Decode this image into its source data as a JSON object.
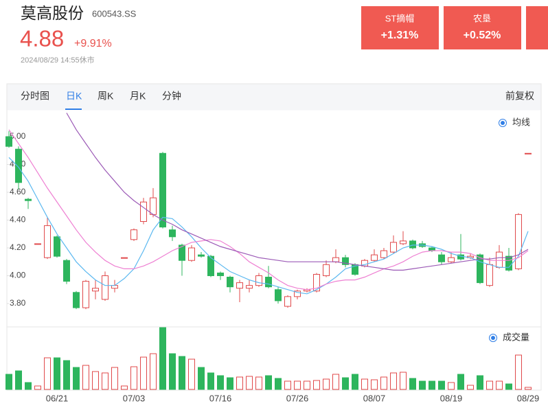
{
  "header": {
    "name": "莫高股份",
    "code": "600543.SS",
    "price": "4.88",
    "change": "+9.91%",
    "time": "2024/08/29 14:55休市"
  },
  "sectors": [
    {
      "name": "ST摘帽",
      "change": "+1.31%"
    },
    {
      "name": "农垦",
      "change": "+0.52%"
    }
  ],
  "tabs": [
    "分时图",
    "日K",
    "周K",
    "月K",
    "分钟"
  ],
  "active_tab": 1,
  "adjust": "前复权",
  "chart_data": [
    {
      "type": "candlestick",
      "legend": "均线",
      "up_color": "#e0484a",
      "down_color": "#2db55d",
      "ylim": [
        3.64,
        5.18
      ],
      "yticks": [
        {
          "value": 3.8,
          "label": "3.80"
        },
        {
          "value": 4.0,
          "label": "4.00"
        },
        {
          "value": 4.2,
          "label": "4.20"
        },
        {
          "value": 4.4,
          "label": "4.40"
        },
        {
          "value": 4.6,
          "label": "4.60"
        },
        {
          "value": 4.8,
          "label": "4.80"
        },
        {
          "value": 5.0,
          "label": "5.00"
        }
      ],
      "open": [
        5.0,
        4.91,
        4.55,
        4.23,
        4.13,
        4.28,
        4.11,
        3.88,
        3.77,
        3.89,
        3.83,
        3.91,
        4.13,
        4.26,
        4.39,
        4.44,
        4.88,
        4.33,
        4.22,
        4.11,
        4.15,
        4.14,
        4.02,
        3.99,
        3.91,
        3.91,
        3.93,
        3.99,
        3.9,
        3.78,
        3.85,
        3.89,
        3.89,
        4.0,
        4.1,
        4.13,
        4.08,
        4.07,
        4.11,
        4.13,
        4.17,
        4.23,
        4.25,
        4.23,
        4.2,
        4.15,
        4.1,
        4.15,
        4.13,
        4.15,
        3.93,
        4.06,
        4.14,
        4.05,
        4.88
      ],
      "high": [
        5.04,
        4.93,
        4.56,
        4.23,
        4.42,
        4.29,
        4.12,
        3.89,
        3.97,
        3.97,
        4.03,
        3.97,
        4.13,
        4.34,
        4.56,
        4.63,
        4.89,
        4.36,
        4.23,
        4.22,
        4.17,
        4.15,
        4.03,
        4.0,
        3.97,
        3.97,
        4.02,
        4.07,
        3.92,
        3.86,
        3.9,
        3.91,
        4.02,
        4.11,
        4.19,
        4.15,
        4.09,
        4.12,
        4.19,
        4.2,
        4.29,
        4.32,
        4.26,
        4.25,
        4.21,
        4.17,
        4.17,
        4.3,
        4.16,
        4.16,
        4.13,
        4.22,
        4.2,
        4.45,
        4.88
      ],
      "low": [
        4.92,
        4.62,
        4.48,
        4.23,
        4.12,
        4.13,
        3.94,
        3.76,
        3.76,
        3.83,
        3.82,
        3.88,
        4.13,
        4.25,
        4.37,
        4.42,
        4.34,
        4.25,
        4.0,
        4.1,
        4.13,
        3.99,
        3.97,
        3.88,
        3.81,
        3.88,
        3.92,
        3.91,
        3.8,
        3.77,
        3.83,
        3.88,
        3.88,
        3.99,
        4.09,
        4.06,
        4.0,
        4.06,
        4.1,
        4.12,
        4.16,
        4.22,
        4.19,
        4.2,
        4.17,
        4.08,
        4.09,
        4.11,
        4.12,
        3.94,
        3.92,
        4.05,
        4.03,
        4.04,
        4.88
      ],
      "close": [
        4.93,
        4.67,
        4.54,
        4.23,
        4.36,
        4.14,
        3.96,
        3.77,
        3.96,
        3.91,
        4.0,
        3.93,
        4.13,
        4.33,
        4.53,
        4.56,
        4.35,
        4.28,
        4.11,
        4.2,
        4.14,
        4.0,
        4.0,
        3.92,
        3.95,
        3.93,
        4.0,
        3.92,
        3.82,
        3.85,
        3.89,
        3.9,
        4.01,
        4.08,
        4.13,
        4.08,
        4.01,
        4.11,
        4.15,
        4.18,
        4.24,
        4.25,
        4.2,
        4.21,
        4.18,
        4.1,
        4.13,
        4.12,
        4.14,
        3.95,
        4.08,
        4.17,
        4.04,
        4.44,
        4.88
      ],
      "ma": [
        {
          "color": "#5bb8f0",
          "values": [
            4.85,
            4.78,
            4.68,
            4.55,
            4.42,
            4.3,
            4.2,
            4.1,
            4.03,
            3.97,
            3.93,
            3.93,
            3.98,
            4.05,
            4.18,
            4.33,
            4.42,
            4.41,
            4.35,
            4.28,
            4.2,
            4.13,
            4.08,
            4.03,
            4.0,
            3.97,
            3.95,
            3.94,
            3.92,
            3.9,
            3.88,
            3.87,
            3.9,
            3.94,
            3.99,
            4.05,
            4.07,
            4.08,
            4.1,
            4.12,
            4.16,
            4.2,
            4.22,
            4.22,
            4.21,
            4.19,
            4.16,
            4.14,
            4.13,
            4.1,
            4.08,
            4.06,
            4.06,
            4.14,
            4.32
          ]
        },
        {
          "color": "#ee7fd2",
          "values": [
            5.05,
            4.95,
            4.85,
            4.74,
            4.63,
            4.53,
            4.43,
            4.33,
            4.24,
            4.17,
            4.11,
            4.07,
            4.05,
            4.05,
            4.07,
            4.1,
            4.14,
            4.18,
            4.21,
            4.24,
            4.25,
            4.26,
            4.25,
            4.21,
            4.16,
            4.1,
            4.06,
            4.02,
            3.97,
            3.93,
            3.91,
            3.9,
            3.91,
            3.94,
            3.96,
            3.97,
            3.97,
            3.99,
            4.02,
            4.05,
            4.07,
            4.1,
            4.14,
            4.17,
            4.18,
            4.18,
            4.17,
            4.17,
            4.16,
            4.13,
            4.11,
            4.11,
            4.11,
            4.13,
            4.18
          ]
        },
        {
          "color": "#9b59b6",
          "values": [
            null,
            null,
            null,
            null,
            null,
            null,
            5.17,
            5.05,
            4.95,
            4.85,
            4.76,
            4.68,
            4.6,
            4.54,
            4.49,
            4.44,
            4.4,
            4.37,
            4.33,
            4.3,
            4.27,
            4.24,
            4.21,
            4.19,
            4.17,
            4.15,
            4.13,
            4.12,
            4.11,
            4.1,
            4.1,
            4.1,
            4.1,
            4.1,
            4.1,
            4.09,
            4.08,
            4.07,
            4.06,
            4.05,
            4.04,
            4.04,
            4.05,
            4.06,
            4.07,
            4.08,
            4.09,
            4.1,
            4.11,
            4.12,
            4.12,
            4.13,
            4.13,
            4.15,
            4.19
          ]
        }
      ]
    },
    {
      "type": "bar",
      "legend": "成交量",
      "ylim": [
        0,
        90
      ],
      "categories": [
        null,
        null,
        null,
        null,
        null,
        "06/21",
        null,
        null,
        null,
        null,
        null,
        null,
        null,
        "07/03",
        null,
        null,
        null,
        null,
        null,
        null,
        null,
        null,
        "07/16",
        null,
        null,
        null,
        null,
        null,
        null,
        null,
        "07/26",
        null,
        null,
        null,
        null,
        null,
        null,
        null,
        "08/07",
        null,
        null,
        null,
        null,
        null,
        null,
        null,
        "08/19",
        null,
        null,
        null,
        null,
        null,
        null,
        null,
        "08/29"
      ],
      "values": [
        22,
        27,
        10,
        5,
        46,
        46,
        42,
        32,
        35,
        26,
        24,
        32,
        5,
        33,
        47,
        52,
        90,
        52,
        48,
        44,
        32,
        24,
        20,
        17,
        18,
        19,
        18,
        20,
        16,
        12,
        12,
        12,
        13,
        15,
        22,
        17,
        22,
        15,
        14,
        18,
        24,
        25,
        16,
        12,
        12,
        12,
        10,
        22,
        6,
        20,
        12,
        12,
        8,
        50,
        3
      ]
    }
  ]
}
